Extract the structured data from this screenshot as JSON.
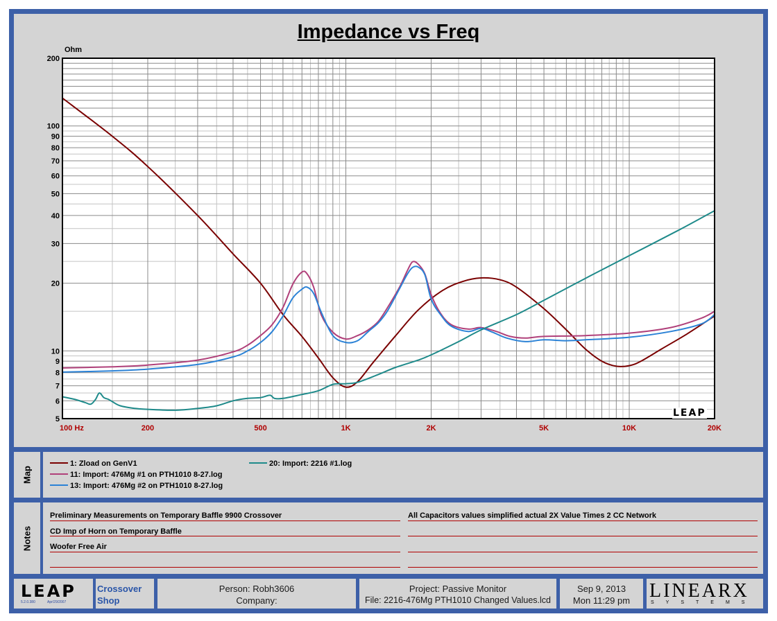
{
  "chart_data": {
    "type": "line",
    "title": "Impedance vs Freq",
    "ylabel": "Ohm",
    "xlabel": "",
    "x_scale": "log",
    "y_scale": "log",
    "xlim": [
      100,
      20000
    ],
    "ylim": [
      5,
      200
    ],
    "x_ticks": [
      {
        "v": 100,
        "label": "100  Hz"
      },
      {
        "v": 200,
        "label": "200"
      },
      {
        "v": 500,
        "label": "500"
      },
      {
        "v": 1000,
        "label": "1K"
      },
      {
        "v": 2000,
        "label": "2K"
      },
      {
        "v": 5000,
        "label": "5K"
      },
      {
        "v": 10000,
        "label": "10K"
      },
      {
        "v": 20000,
        "label": "20K"
      }
    ],
    "y_ticks": [
      {
        "v": 5,
        "label": "5"
      },
      {
        "v": 6,
        "label": "6"
      },
      {
        "v": 7,
        "label": "7"
      },
      {
        "v": 8,
        "label": "8"
      },
      {
        "v": 9,
        "label": "9"
      },
      {
        "v": 10,
        "label": "10"
      },
      {
        "v": 20,
        "label": "20"
      },
      {
        "v": 30,
        "label": "30"
      },
      {
        "v": 40,
        "label": "40"
      },
      {
        "v": 50,
        "label": "50"
      },
      {
        "v": 60,
        "label": "60"
      },
      {
        "v": 70,
        "label": "70"
      },
      {
        "v": 80,
        "label": "80"
      },
      {
        "v": 90,
        "label": "90"
      },
      {
        "v": 100,
        "label": "100"
      },
      {
        "v": 200,
        "label": "200"
      }
    ],
    "grid": true,
    "series": [
      {
        "name": "1: Zload on GenV1",
        "color": "#7a0000",
        "points": [
          [
            100,
            133
          ],
          [
            150,
            90
          ],
          [
            200,
            66
          ],
          [
            300,
            40
          ],
          [
            400,
            27
          ],
          [
            500,
            20
          ],
          [
            600,
            14.5
          ],
          [
            700,
            11.6
          ],
          [
            800,
            9.3
          ],
          [
            900,
            7.6
          ],
          [
            1000,
            6.9
          ],
          [
            1100,
            7.3
          ],
          [
            1250,
            8.9
          ],
          [
            1500,
            11.7
          ],
          [
            1800,
            15.2
          ],
          [
            2200,
            18.6
          ],
          [
            2600,
            20.4
          ],
          [
            3000,
            21.1
          ],
          [
            3500,
            20.7
          ],
          [
            4000,
            19.2
          ],
          [
            5000,
            15.4
          ],
          [
            6000,
            12.4
          ],
          [
            7000,
            10.2
          ],
          [
            8000,
            9.0
          ],
          [
            9000,
            8.55
          ],
          [
            10000,
            8.6
          ],
          [
            11000,
            9.0
          ],
          [
            13000,
            10.2
          ],
          [
            16000,
            11.9
          ],
          [
            20000,
            14.3
          ]
        ]
      },
      {
        "name": "11: Import: 476Mg #1 on PTH1010 8-27.log",
        "color": "#b0407a",
        "points": [
          [
            100,
            8.4
          ],
          [
            150,
            8.5
          ],
          [
            200,
            8.65
          ],
          [
            300,
            9.1
          ],
          [
            400,
            9.9
          ],
          [
            450,
            10.6
          ],
          [
            500,
            11.7
          ],
          [
            550,
            13.1
          ],
          [
            600,
            15.6
          ],
          [
            650,
            19.8
          ],
          [
            700,
            22.4
          ],
          [
            730,
            22.0
          ],
          [
            770,
            19.2
          ],
          [
            820,
            14.4
          ],
          [
            900,
            12.1
          ],
          [
            1000,
            11.3
          ],
          [
            1100,
            11.7
          ],
          [
            1200,
            12.4
          ],
          [
            1300,
            13.5
          ],
          [
            1400,
            15.5
          ],
          [
            1550,
            19.3
          ],
          [
            1650,
            22.8
          ],
          [
            1720,
            24.9
          ],
          [
            1800,
            24.3
          ],
          [
            1900,
            22.0
          ],
          [
            2000,
            17.8
          ],
          [
            2150,
            14.8
          ],
          [
            2350,
            13.1
          ],
          [
            2700,
            12.5
          ],
          [
            3000,
            12.7
          ],
          [
            3400,
            12.2
          ],
          [
            3800,
            11.6
          ],
          [
            4300,
            11.4
          ],
          [
            5000,
            11.6
          ],
          [
            7000,
            11.7
          ],
          [
            10000,
            12.0
          ],
          [
            14000,
            12.7
          ],
          [
            18000,
            14.0
          ],
          [
            20000,
            15.0
          ]
        ]
      },
      {
        "name": "13: Import: 476Mg #2 on PTH1010 8-27.log",
        "color": "#2b82d6",
        "points": [
          [
            100,
            8.05
          ],
          [
            150,
            8.15
          ],
          [
            200,
            8.3
          ],
          [
            300,
            8.7
          ],
          [
            400,
            9.4
          ],
          [
            450,
            10.0
          ],
          [
            500,
            10.9
          ],
          [
            550,
            12.2
          ],
          [
            600,
            14.3
          ],
          [
            650,
            17.2
          ],
          [
            700,
            18.8
          ],
          [
            730,
            19.2
          ],
          [
            770,
            18.0
          ],
          [
            820,
            14.8
          ],
          [
            900,
            11.7
          ],
          [
            1000,
            10.9
          ],
          [
            1100,
            11.1
          ],
          [
            1200,
            12.2
          ],
          [
            1300,
            13.3
          ],
          [
            1400,
            15.0
          ],
          [
            1550,
            19.0
          ],
          [
            1650,
            22.0
          ],
          [
            1720,
            23.5
          ],
          [
            1800,
            23.6
          ],
          [
            1900,
            21.8
          ],
          [
            2000,
            17.0
          ],
          [
            2150,
            14.6
          ],
          [
            2350,
            12.9
          ],
          [
            2700,
            12.2
          ],
          [
            3000,
            12.6
          ],
          [
            3300,
            12.1
          ],
          [
            3700,
            11.4
          ],
          [
            4300,
            11.0
          ],
          [
            5000,
            11.2
          ],
          [
            6000,
            11.1
          ],
          [
            7000,
            11.2
          ],
          [
            10000,
            11.5
          ],
          [
            14000,
            12.2
          ],
          [
            18000,
            13.2
          ],
          [
            20000,
            14.5
          ]
        ]
      },
      {
        "name": "20: Import: 2216 #1.log",
        "color": "#1e8a8a",
        "points": [
          [
            100,
            6.25
          ],
          [
            110,
            6.1
          ],
          [
            120,
            5.9
          ],
          [
            126,
            5.8
          ],
          [
            131,
            6.1
          ],
          [
            135,
            6.5
          ],
          [
            140,
            6.2
          ],
          [
            145,
            6.1
          ],
          [
            150,
            5.95
          ],
          [
            160,
            5.7
          ],
          [
            180,
            5.55
          ],
          [
            200,
            5.5
          ],
          [
            250,
            5.45
          ],
          [
            300,
            5.55
          ],
          [
            350,
            5.7
          ],
          [
            400,
            6.0
          ],
          [
            450,
            6.15
          ],
          [
            500,
            6.2
          ],
          [
            540,
            6.35
          ],
          [
            560,
            6.15
          ],
          [
            600,
            6.15
          ],
          [
            700,
            6.4
          ],
          [
            800,
            6.65
          ],
          [
            900,
            7.1
          ],
          [
            1000,
            7.15
          ],
          [
            1100,
            7.25
          ],
          [
            1300,
            7.85
          ],
          [
            1500,
            8.45
          ],
          [
            1800,
            9.1
          ],
          [
            2000,
            9.6
          ],
          [
            2500,
            11.0
          ],
          [
            3000,
            12.4
          ],
          [
            4000,
            14.5
          ],
          [
            5000,
            16.8
          ],
          [
            7000,
            21.0
          ],
          [
            10000,
            26.5
          ],
          [
            15000,
            34.5
          ],
          [
            20000,
            42.0
          ]
        ]
      }
    ]
  },
  "legend": {
    "panel_label": "Map",
    "items": [
      {
        "label": "1: Zload on GenV1",
        "color": "#7a0000"
      },
      {
        "label": "11: Import: 476Mg #1 on PTH1010 8-27.log",
        "color": "#b0407a"
      },
      {
        "label": "13: Import: 476Mg #2 on PTH1010 8-27.log",
        "color": "#2b82d6"
      },
      {
        "label": "20: Import: 2216 #1.log",
        "color": "#1e8a8a"
      }
    ]
  },
  "notes": {
    "panel_label": "Notes",
    "left": [
      "Preliminary Measurements on Temporary Baffle  9900 Crossover",
      "CD Imp of Horn on Temporary Baffle",
      "Woofer Free Air",
      ""
    ],
    "right": [
      "All Capacitors values simplified actual 2X Value Times 2 CC Network",
      "",
      "",
      ""
    ]
  },
  "footer": {
    "logo_text": "LEAP",
    "logo_version": "5.2.0.380",
    "logo_date": "Apr/29/2007",
    "app_line1": "Crossover",
    "app_line2": "Shop",
    "person": "Person: Robh3606",
    "company": "Company:",
    "project": "Project: Passive Monitor",
    "file": "File: 2216-476Mg PTH1010 Changed Values.lcd",
    "date": "Sep  9, 2013",
    "time": "Mon 11:29 pm",
    "brand": "LINEARX",
    "brand_sub": "SYSTEMS",
    "plot_logo": "LEAP"
  },
  "colors": {
    "frame": "#3d60a8",
    "panel": "#d4d4d4",
    "tick_text": "#b00000"
  }
}
